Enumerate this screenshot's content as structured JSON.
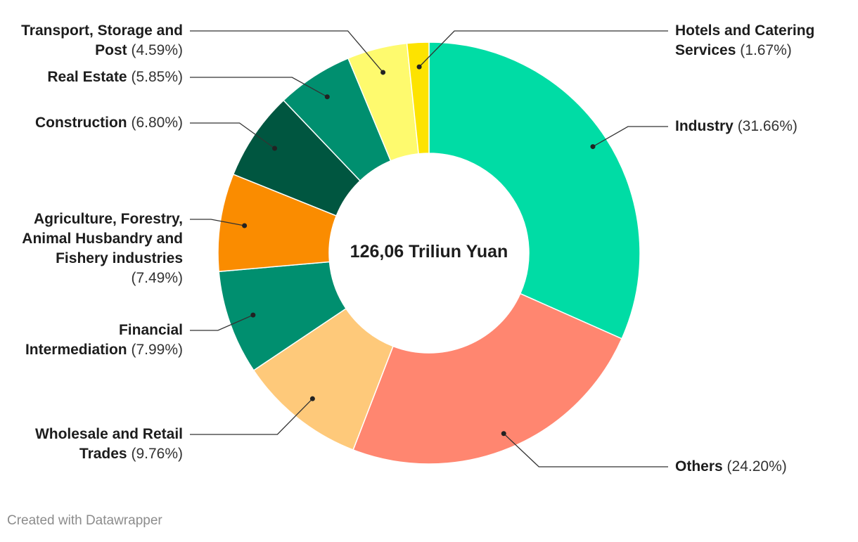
{
  "chart_data": {
    "type": "pie",
    "center_label": "126,06 Triliun Yuan",
    "credit": "Created with Datawrapper",
    "slices": [
      {
        "name_lines": [
          "Industry"
        ],
        "pct_label": "(31.66%)",
        "value": 31.66,
        "color": "#00dca5"
      },
      {
        "name_lines": [
          "Others"
        ],
        "pct_label": "(24.20%)",
        "value": 24.2,
        "color": "#ff8670"
      },
      {
        "name_lines": [
          "Wholesale and Retail",
          "Trades"
        ],
        "pct_label": "(9.76%)",
        "value": 9.76,
        "color": "#fec97a"
      },
      {
        "name_lines": [
          "Financial",
          "Intermediation"
        ],
        "pct_label": "(7.99%)",
        "value": 7.99,
        "color": "#008f6f"
      },
      {
        "name_lines": [
          "Agriculture, Forestry,",
          "Animal Husbandry and",
          "Fishery industries"
        ],
        "pct_label": "(7.49%)",
        "value": 7.49,
        "color": "#fa8c00"
      },
      {
        "name_lines": [
          "Construction"
        ],
        "pct_label": "(6.80%)",
        "value": 6.8,
        "color": "#005640"
      },
      {
        "name_lines": [
          "Real Estate"
        ],
        "pct_label": "(5.85%)",
        "value": 5.85,
        "color": "#008f6f"
      },
      {
        "name_lines": [
          "Transport, Storage and",
          "Post"
        ],
        "pct_label": "(4.59%)",
        "value": 4.59,
        "color": "#fefa6e"
      },
      {
        "name_lines": [
          "Hotels and Catering",
          "Services"
        ],
        "pct_label": "(1.67%)",
        "value": 1.67,
        "color": "#fde300"
      }
    ]
  }
}
